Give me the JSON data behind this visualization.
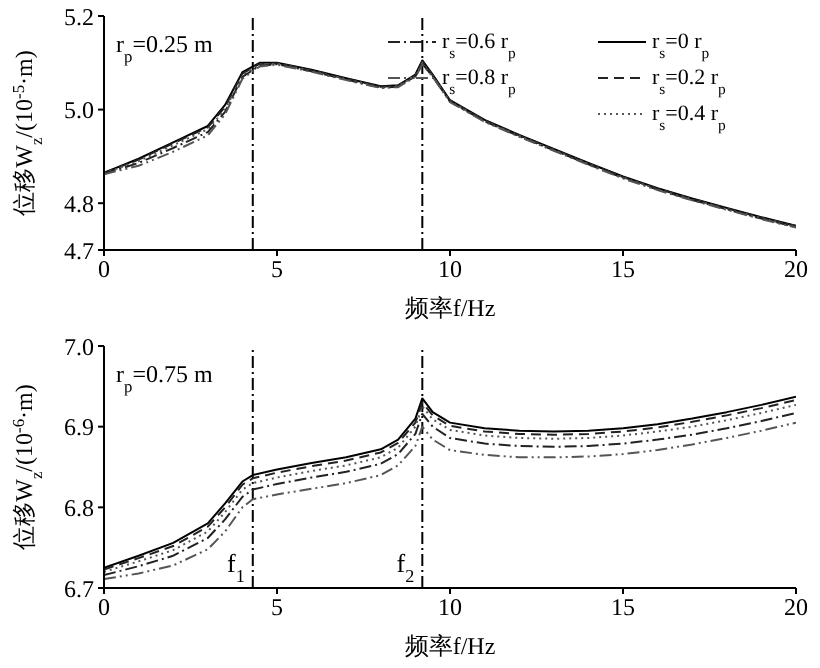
{
  "chart_data": [
    {
      "type": "line",
      "annotations": [
        "r$_{p}$=0.25 m"
      ],
      "xlabel": "频率f/Hz",
      "ylabel": "位移W$_{z}$/(10$^{-5}$·m)",
      "x": [
        0,
        1,
        2,
        3,
        3.5,
        4,
        4.5,
        5,
        6,
        7,
        8,
        8.5,
        9,
        9.2,
        9.5,
        10,
        11,
        12,
        13,
        14,
        15,
        16,
        17,
        18,
        19,
        20
      ],
      "series": [
        {
          "name": "r$_{s}$=0 r$_{p}$",
          "color": "#000000",
          "line_style": "solid",
          "values": [
            4.865,
            4.895,
            4.93,
            4.965,
            5.01,
            5.08,
            5.1,
            5.1,
            5.085,
            5.067,
            5.05,
            5.052,
            5.075,
            5.105,
            5.075,
            5.02,
            4.978,
            4.946,
            4.916,
            4.886,
            4.857,
            4.832,
            4.81,
            4.79,
            4.77,
            4.752
          ]
        },
        {
          "name": "r$_{s}$=0.2 r$_{p}$",
          "color": "#222222",
          "line_style": "dashed",
          "values": [
            4.865,
            4.893,
            4.928,
            4.962,
            5.006,
            5.077,
            5.098,
            5.099,
            5.084,
            5.066,
            5.049,
            5.051,
            5.073,
            5.103,
            5.073,
            5.019,
            4.977,
            4.945,
            4.915,
            4.885,
            4.856,
            4.831,
            4.809,
            4.789,
            4.769,
            4.751
          ]
        },
        {
          "name": "r$_{s}$=0.4 r$_{p}$",
          "color": "#555555",
          "line_style": "dotted",
          "values": [
            4.864,
            4.89,
            4.924,
            4.958,
            5.0,
            5.073,
            5.096,
            5.098,
            5.083,
            5.065,
            5.048,
            5.05,
            5.072,
            5.1,
            5.072,
            5.018,
            4.976,
            4.944,
            4.914,
            4.884,
            4.855,
            4.83,
            4.808,
            4.788,
            4.768,
            4.75
          ]
        },
        {
          "name": "r$_{s}$=0.6 r$_{p}$",
          "color": "#222222",
          "line_style": "dashdot",
          "values": [
            4.863,
            4.886,
            4.918,
            4.952,
            4.995,
            5.07,
            5.094,
            5.097,
            5.082,
            5.064,
            5.047,
            5.049,
            5.071,
            5.098,
            5.071,
            5.017,
            4.975,
            4.943,
            4.913,
            4.883,
            4.854,
            4.829,
            4.807,
            4.787,
            4.767,
            4.749
          ]
        },
        {
          "name": "r$_{s}$=0.8 r$_{p}$",
          "color": "#555555",
          "line_style": "dashdotdot",
          "values": [
            4.862,
            4.88,
            4.91,
            4.945,
            4.99,
            5.066,
            5.092,
            5.096,
            5.081,
            5.063,
            5.046,
            5.048,
            5.07,
            5.096,
            5.07,
            5.016,
            4.974,
            4.942,
            4.912,
            4.882,
            4.853,
            4.828,
            4.806,
            4.786,
            4.766,
            4.748
          ]
        }
      ],
      "xlim": [
        0,
        20
      ],
      "xticks": [
        0,
        5,
        10,
        15,
        20
      ],
      "ylim": [
        4.7,
        5.2
      ],
      "yticks": [
        4.7,
        4.8,
        {
          "value": 5,
          "label": "5.0"
        },
        5.2
      ],
      "ref_lines": [
        {
          "axis": "x",
          "value": 4.3,
          "color": "#000000",
          "line_style": "dashdot"
        },
        {
          "axis": "x",
          "value": 9.2,
          "color": "#000000",
          "line_style": "dashdot"
        }
      ],
      "legend": "top right",
      "grid": false
    },
    {
      "type": "line",
      "annotations": [
        "r$_{p}$=0.75 m"
      ],
      "xlabel": "频率f/Hz",
      "ylabel": "位移W$_{z}$/(10$^{-6}$·m)",
      "x": [
        0,
        1,
        2,
        3,
        3.5,
        4,
        4.3,
        5,
        6,
        7,
        8,
        8.5,
        9,
        9.2,
        9.5,
        10,
        11,
        12,
        13,
        14,
        15,
        16,
        17,
        18,
        19,
        20
      ],
      "series": [
        {
          "color": "#000000",
          "line_style": "solid",
          "values": [
            6.725,
            6.74,
            6.756,
            6.78,
            6.805,
            6.832,
            6.84,
            6.847,
            6.855,
            6.862,
            6.872,
            6.884,
            6.91,
            6.935,
            6.918,
            6.905,
            6.898,
            6.895,
            6.894,
            6.895,
            6.898,
            6.903,
            6.91,
            6.918,
            6.927,
            6.937
          ]
        },
        {
          "color": "#222222",
          "line_style": "dashed",
          "values": [
            6.723,
            6.737,
            6.752,
            6.776,
            6.8,
            6.828,
            6.836,
            6.843,
            6.851,
            6.858,
            6.868,
            6.88,
            6.905,
            6.93,
            6.914,
            6.901,
            6.894,
            6.891,
            6.89,
            6.891,
            6.894,
            6.899,
            6.906,
            6.914,
            6.923,
            6.933
          ]
        },
        {
          "color": "#555555",
          "line_style": "dotted",
          "values": [
            6.72,
            6.733,
            6.747,
            6.77,
            6.794,
            6.822,
            6.83,
            6.837,
            6.845,
            6.852,
            6.862,
            6.874,
            6.9,
            6.925,
            6.909,
            6.896,
            6.889,
            6.886,
            6.885,
            6.886,
            6.889,
            6.894,
            6.9,
            6.908,
            6.917,
            6.927
          ]
        },
        {
          "color": "#222222",
          "line_style": "dashdot",
          "values": [
            6.716,
            6.727,
            6.74,
            6.762,
            6.785,
            6.813,
            6.822,
            6.829,
            6.837,
            6.844,
            6.854,
            6.866,
            6.891,
            6.916,
            6.9,
            6.886,
            6.879,
            6.876,
            6.875,
            6.876,
            6.879,
            6.884,
            6.89,
            6.898,
            6.907,
            6.917
          ]
        },
        {
          "color": "#555555",
          "line_style": "dashdotdot",
          "values": [
            6.711,
            6.718,
            6.728,
            6.748,
            6.77,
            6.8,
            6.81,
            6.816,
            6.823,
            6.83,
            6.84,
            6.852,
            6.876,
            6.9,
            6.884,
            6.871,
            6.865,
            6.862,
            6.862,
            6.863,
            6.866,
            6.871,
            6.878,
            6.886,
            6.895,
            6.905
          ]
        }
      ],
      "xlim": [
        0,
        20
      ],
      "xticks": [
        0,
        5,
        10,
        15,
        20
      ],
      "ylim": [
        6.7,
        7.0
      ],
      "yticks": [
        6.7,
        6.8,
        6.9,
        {
          "value": 7,
          "label": "7.0"
        }
      ],
      "ref_lines": [
        {
          "axis": "x",
          "value": 4.3,
          "label": "f$_{1}$",
          "color": "#000000",
          "line_style": "dashdot"
        },
        {
          "axis": "x",
          "value": 9.2,
          "label": "f$_{2}$",
          "color": "#000000",
          "line_style": "dashdot"
        }
      ],
      "grid": false
    }
  ]
}
